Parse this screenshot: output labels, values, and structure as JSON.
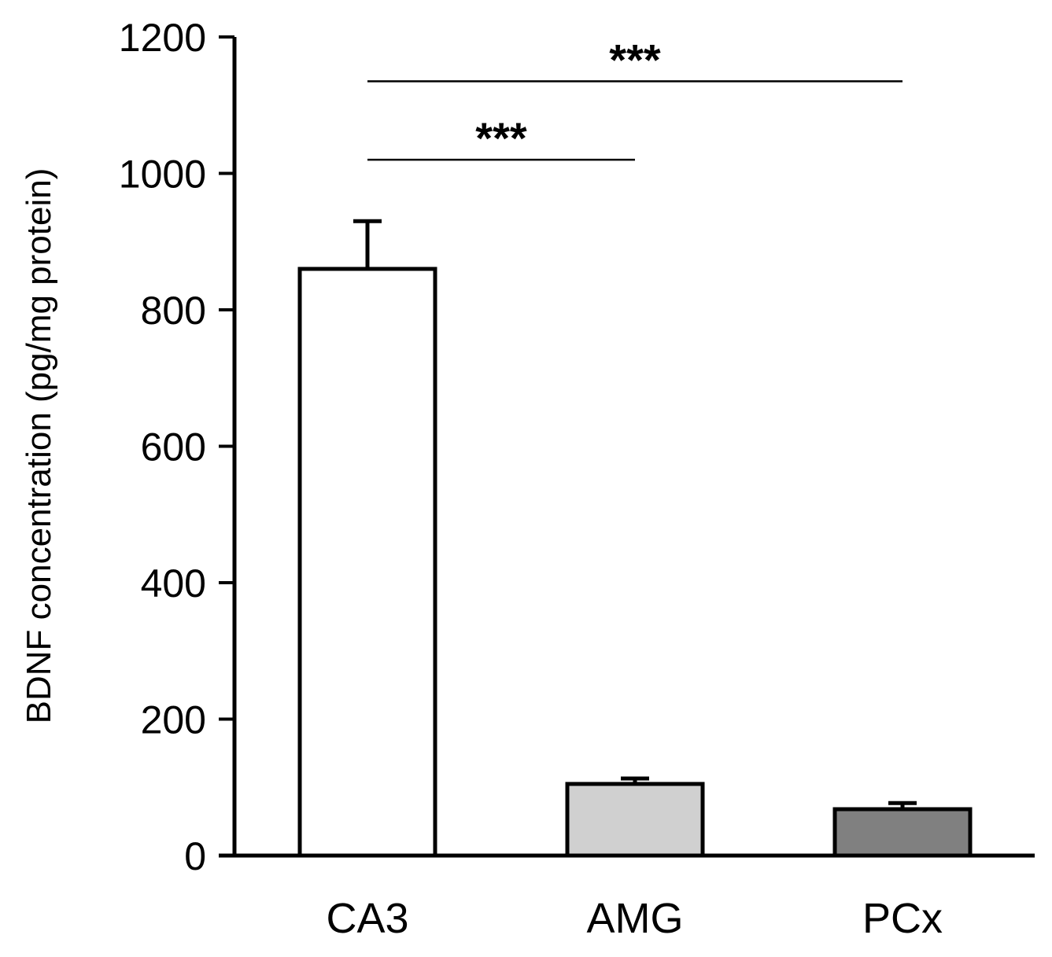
{
  "chart_data": {
    "type": "bar",
    "title": "",
    "xlabel": "",
    "ylabel": "BDNF concentration (pg/mg protein)",
    "ylim": [
      0,
      1200
    ],
    "yticks": [
      0,
      200,
      400,
      600,
      800,
      1000,
      1200
    ],
    "categories": [
      "CA3",
      "AMG",
      "PCx"
    ],
    "values": [
      860,
      105,
      68
    ],
    "errors": [
      70,
      8,
      9
    ],
    "bar_colors": [
      "#ffffff",
      "#d0d0d0",
      "#808080"
    ],
    "grid": false,
    "legend": "none",
    "significance": [
      {
        "from": 0,
        "to": 1,
        "label": "***",
        "y": 1020
      },
      {
        "from": 0,
        "to": 2,
        "label": "***",
        "y": 1135
      }
    ]
  }
}
